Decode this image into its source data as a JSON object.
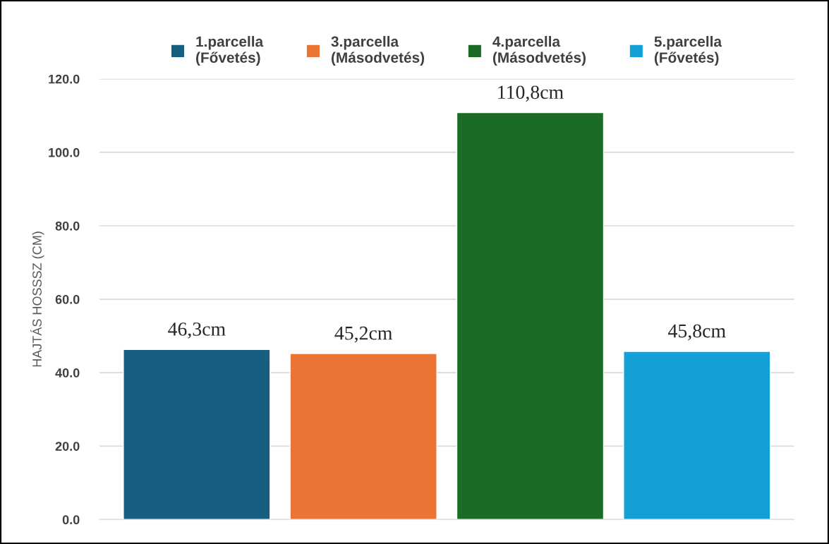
{
  "chart_data": {
    "type": "bar",
    "ylabel": "HAJTÁS HOSSSZ (CM)",
    "categories": [
      null
    ],
    "series": [
      {
        "name": "1.parcella\n(Fővetés)",
        "color": "#175e81",
        "values": [
          46.3
        ],
        "value_labels": [
          "46,3cm"
        ]
      },
      {
        "name": "3.parcella\n(Másodvetés)",
        "color": "#e97434",
        "values": [
          45.2
        ],
        "value_labels": [
          "45,2cm"
        ]
      },
      {
        "name": "4.parcella\n(Másodvetés)",
        "color": "#1b6b25",
        "values": [
          110.8
        ],
        "value_labels": [
          "110,8cm"
        ]
      },
      {
        "name": "5.parcella\n(Fővetés)",
        "color": "#12a0d6",
        "values": [
          45.8
        ],
        "value_labels": [
          "45,8cm"
        ]
      }
    ],
    "ylim": [
      0,
      120
    ],
    "yticks": [
      {
        "value": 0,
        "label": "0.0"
      },
      {
        "value": 20,
        "label": "20.0"
      },
      {
        "value": 40,
        "label": "40.0"
      },
      {
        "value": 60,
        "label": "60.0"
      },
      {
        "value": 80,
        "label": "80.0"
      },
      {
        "value": 100,
        "label": "100.0"
      },
      {
        "value": 120,
        "label": "120.0"
      }
    ],
    "grid": "y",
    "legend": "top"
  }
}
